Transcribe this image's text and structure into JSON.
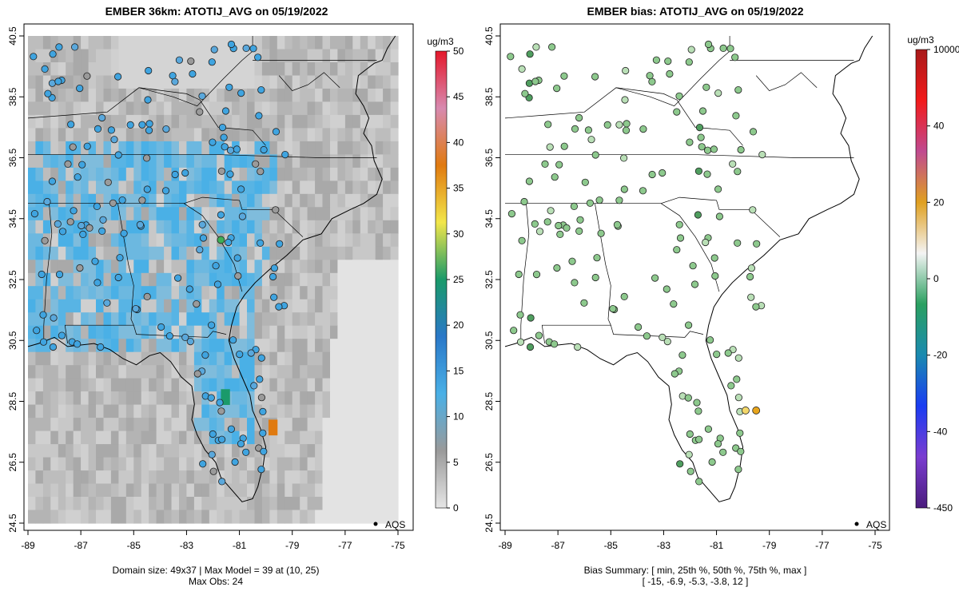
{
  "left_panel": {
    "title": "EMBER 36km: ATOTIJ_AVG on 05/19/2022",
    "legend_unit": "ug/m3",
    "legend_ticks": [
      "0",
      "5",
      "10",
      "15",
      "20",
      "25",
      "30",
      "35",
      "40",
      "45",
      "50"
    ],
    "footer_line1": "Domain size: 49x37 | Max Model = 39 at (10, 25)",
    "footer_line2": "Max Obs: 24",
    "aqs_label": "AQS"
  },
  "right_panel": {
    "title": "EMBER bias: ATOTIJ_AVG on 05/19/2022",
    "legend_unit": "ug/m3",
    "legend_ticks": [
      "-450",
      "-40",
      "-20",
      "0",
      "20",
      "40",
      "10000"
    ],
    "footer_line1": "Bias Summary: [ min, 25th %, 50th %, 75th %, max ]",
    "footer_line2": "[ -15,   -6.9,   -5.3,   -3.8,   12 ]",
    "aqs_label": "AQS"
  },
  "x_ticks": [
    "-89",
    "-87",
    "-85",
    "-83",
    "-81",
    "-79",
    "-77",
    "-75"
  ],
  "y_ticks": [
    "24.5",
    "26.5",
    "28.5",
    "30.5",
    "32.5",
    "34.5",
    "36.5",
    "38.5",
    "40.5"
  ],
  "colors": {
    "site_blue": "#3fa4e0",
    "site_green_bias": "#8dc98d",
    "hotspot_orange": "#e07a10",
    "hotspot_green": "#1a9a6a"
  },
  "chart_data": [
    {
      "type": "map",
      "title": "EMBER 36km: ATOTIJ_AVG on 05/19/2022",
      "variable": "ATOTIJ_AVG",
      "units": "ug/m3",
      "xlim": [
        -89,
        -75
      ],
      "ylim": [
        24.5,
        40.5
      ],
      "colorbar_range": [
        0,
        50
      ],
      "max_model": 39,
      "max_model_cell": [
        10,
        25
      ],
      "max_obs": 24,
      "domain_size": "49x37"
    },
    {
      "type": "map",
      "title": "EMBER bias: ATOTIJ_AVG on 05/19/2022",
      "variable": "ATOTIJ_AVG bias",
      "units": "ug/m3",
      "xlim": [
        -89,
        -75
      ],
      "ylim": [
        24.5,
        40.5
      ],
      "bias_summary": {
        "min": -15,
        "p25": -6.9,
        "p50": -5.3,
        "p75": -3.8,
        "max": 12
      }
    }
  ]
}
